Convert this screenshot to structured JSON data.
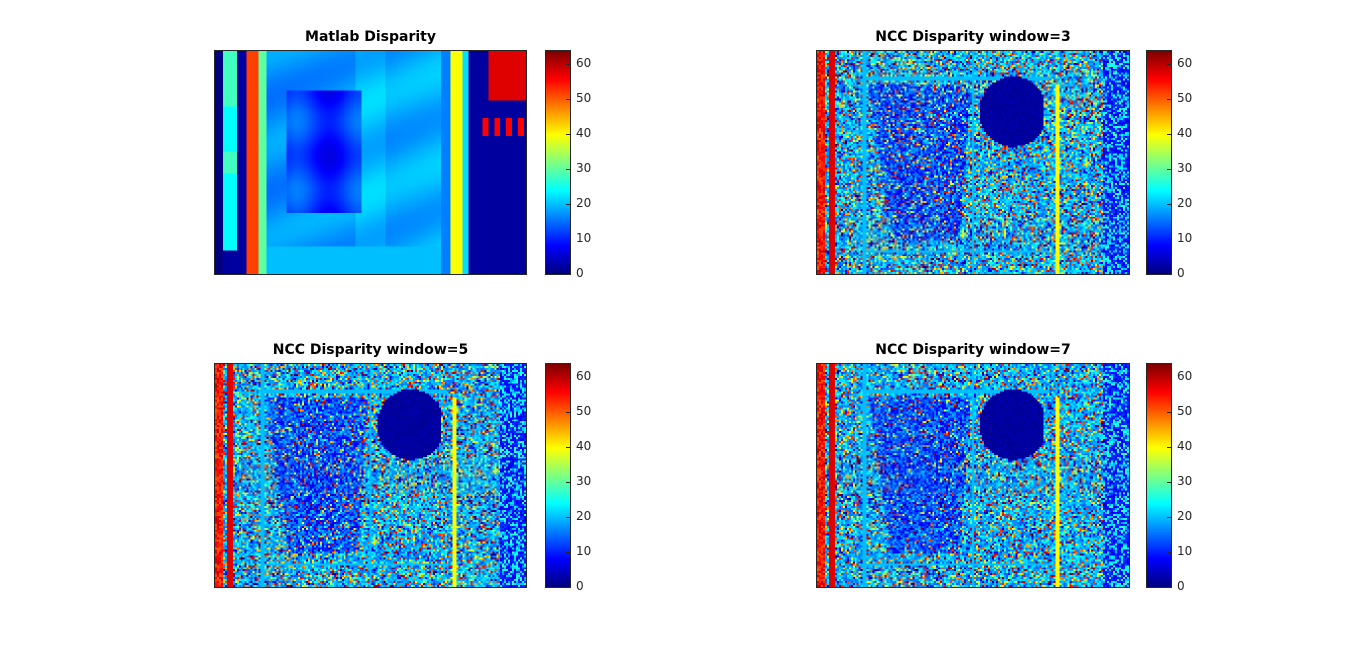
{
  "chart_data": [
    {
      "type": "heatmap",
      "title": "Matlab Disparity",
      "colormap": "jet",
      "clim": [
        0,
        64
      ],
      "colorbar_ticks": [
        0,
        10,
        20,
        30,
        40,
        50,
        60
      ],
      "pattern": "smooth"
    },
    {
      "type": "heatmap",
      "title": "NCC Disparity window=3",
      "colormap": "jet",
      "clim": [
        0,
        64
      ],
      "colorbar_ticks": [
        0,
        10,
        20,
        30,
        40,
        50,
        60
      ],
      "pattern": "noisy",
      "noise_level": 1.0
    },
    {
      "type": "heatmap",
      "title": "NCC Disparity window=5",
      "colormap": "jet",
      "clim": [
        0,
        64
      ],
      "colorbar_ticks": [
        0,
        10,
        20,
        30,
        40,
        50,
        60
      ],
      "pattern": "noisy",
      "noise_level": 0.85
    },
    {
      "type": "heatmap",
      "title": "NCC Disparity window=7",
      "colormap": "jet",
      "clim": [
        0,
        64
      ],
      "colorbar_ticks": [
        0,
        10,
        20,
        30,
        40,
        50,
        60
      ],
      "pattern": "noisy",
      "noise_level": 0.7
    }
  ]
}
